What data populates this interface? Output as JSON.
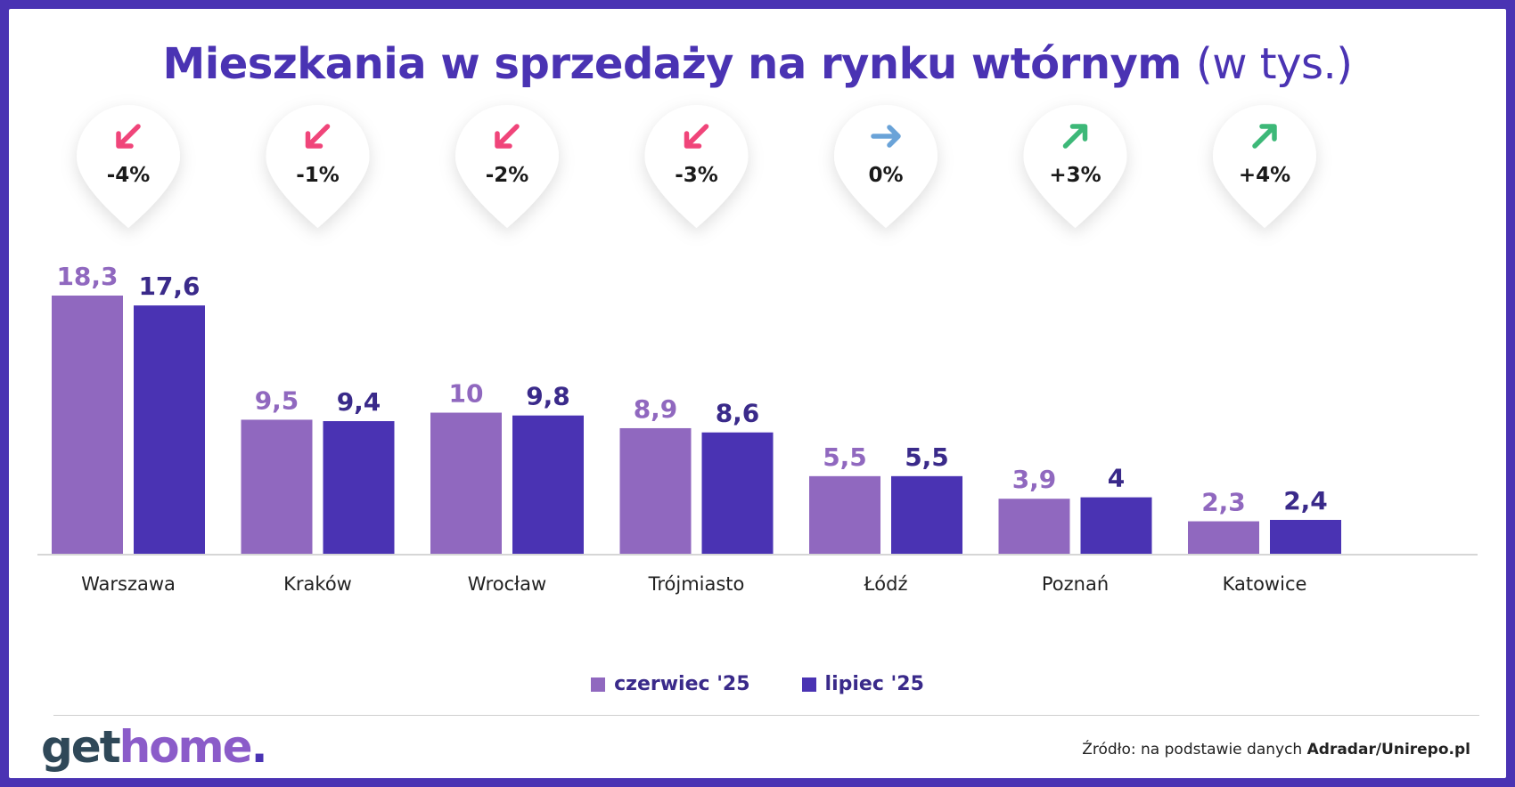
{
  "title": {
    "main": "Mieszkania w sprzedaży na rynku wtórnym",
    "unit": "(w tys.)"
  },
  "chart_data": {
    "type": "bar",
    "title": "Mieszkania w sprzedaży na rynku wtórnym (w tys.)",
    "categories": [
      "Warszawa",
      "Kraków",
      "Wrocław",
      "Trójmiasto",
      "Łódź",
      "Poznań",
      "Katowice"
    ],
    "series": [
      {
        "name": "czerwiec '25",
        "values": [
          18.3,
          9.5,
          10,
          8.9,
          5.5,
          3.9,
          2.3
        ],
        "labels": [
          "18,3",
          "9,5",
          "10",
          "8,9",
          "5,5",
          "3,9",
          "2,3"
        ],
        "color": "#9068bf"
      },
      {
        "name": "lipiec '25",
        "values": [
          17.6,
          9.4,
          9.8,
          8.6,
          5.5,
          4,
          2.4
        ],
        "labels": [
          "17,6",
          "9,4",
          "9,8",
          "8,6",
          "5,5",
          "4",
          "2,4"
        ],
        "color": "#4a33b3"
      }
    ],
    "changes": [
      {
        "label": "-4%",
        "direction": "down"
      },
      {
        "label": "-1%",
        "direction": "down"
      },
      {
        "label": "-2%",
        "direction": "down"
      },
      {
        "label": "-3%",
        "direction": "down"
      },
      {
        "label": "0%",
        "direction": "flat"
      },
      {
        "label": "+3%",
        "direction": "up"
      },
      {
        "label": "+4%",
        "direction": "up"
      }
    ],
    "ylim": [
      0,
      18.3
    ],
    "grid": false,
    "legend_position": "bottom"
  },
  "colors": {
    "down": "#f0457a",
    "flat": "#6aa3d8",
    "up": "#3db878",
    "brand": "#4a33b3"
  },
  "footer": {
    "logo_get": "get",
    "logo_home": "home",
    "logo_dot": ".",
    "source_prefix": "Źródło: na podstawie danych ",
    "source_name": "Adradar/Unirepo.pl"
  }
}
